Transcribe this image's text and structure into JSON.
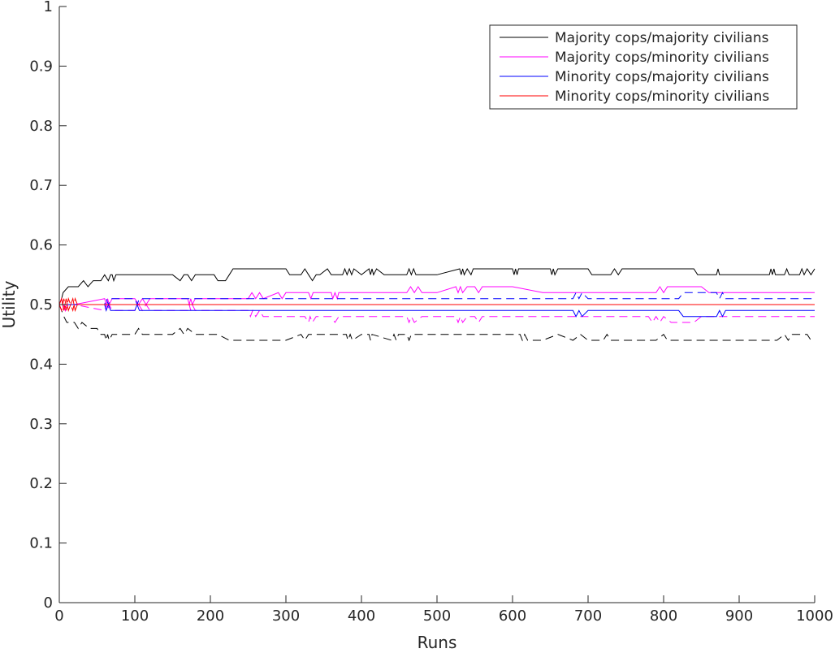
{
  "chart_data": {
    "type": "line",
    "title": "",
    "xlabel": "Runs",
    "ylabel": "Utility",
    "xlim": [
      0,
      1000
    ],
    "ylim": [
      0,
      1
    ],
    "xticks": [
      0,
      100,
      200,
      300,
      400,
      500,
      600,
      700,
      800,
      900,
      1000
    ],
    "yticks": [
      0,
      0.1,
      0.2,
      0.3,
      0.4,
      0.5,
      0.6,
      0.7,
      0.8,
      0.9,
      1
    ],
    "xtick_labels": [
      "0",
      "100",
      "200",
      "300",
      "400",
      "500",
      "600",
      "700",
      "800",
      "900",
      "1000"
    ],
    "ytick_labels": [
      "0",
      "0.1",
      "0.2",
      "0.3",
      "0.4",
      "0.5",
      "0.6",
      "0.7",
      "0.8",
      "0.9",
      "1"
    ],
    "grid": false,
    "legend_position": "top-right",
    "legend_entries": [
      "Majority cops/majority civilians",
      "Majority cops/minority civilians",
      "Minority cops/majority civilians",
      "Minority cops/minority civilians"
    ],
    "series": [
      {
        "color": "#000000",
        "style": "solid",
        "x": [
          0,
          3,
          5,
          12,
          18,
          25,
          32,
          38,
          45,
          55,
          60,
          65,
          68,
          70,
          72,
          75,
          80,
          90,
          100,
          150,
          160,
          165,
          170,
          175,
          180,
          205,
          210,
          220,
          225,
          230,
          300,
          305,
          320,
          325,
          330,
          335,
          340,
          345,
          355,
          360,
          375,
          378,
          381,
          384,
          387,
          390,
          400,
          410,
          412,
          414,
          416,
          420,
          430,
          440,
          460,
          463,
          466,
          469,
          472,
          500,
          530,
          532,
          534,
          536,
          540,
          545,
          548,
          560,
          600,
          602,
          604,
          606,
          608,
          620,
          650,
          652,
          654,
          656,
          660,
          700,
          705,
          710,
          730,
          735,
          740,
          745,
          750,
          790,
          800,
          840,
          845,
          850,
          870,
          872,
          874,
          900,
          940,
          942,
          944,
          946,
          948,
          960,
          963,
          966,
          980,
          983,
          986,
          990,
          995,
          1000
        ],
        "y": [
          0.5,
          0.51,
          0.52,
          0.53,
          0.53,
          0.53,
          0.54,
          0.53,
          0.54,
          0.54,
          0.55,
          0.54,
          0.55,
          0.55,
          0.54,
          0.55,
          0.55,
          0.55,
          0.55,
          0.55,
          0.54,
          0.55,
          0.55,
          0.54,
          0.55,
          0.55,
          0.54,
          0.54,
          0.55,
          0.56,
          0.56,
          0.55,
          0.55,
          0.56,
          0.55,
          0.54,
          0.55,
          0.55,
          0.56,
          0.55,
          0.55,
          0.56,
          0.55,
          0.56,
          0.55,
          0.56,
          0.55,
          0.56,
          0.55,
          0.56,
          0.55,
          0.56,
          0.55,
          0.55,
          0.55,
          0.56,
          0.55,
          0.56,
          0.55,
          0.55,
          0.56,
          0.55,
          0.56,
          0.55,
          0.56,
          0.55,
          0.56,
          0.56,
          0.56,
          0.55,
          0.56,
          0.55,
          0.56,
          0.56,
          0.56,
          0.55,
          0.56,
          0.55,
          0.56,
          0.56,
          0.55,
          0.55,
          0.55,
          0.56,
          0.55,
          0.56,
          0.56,
          0.56,
          0.56,
          0.56,
          0.55,
          0.55,
          0.55,
          0.56,
          0.55,
          0.55,
          0.55,
          0.56,
          0.55,
          0.56,
          0.55,
          0.55,
          0.56,
          0.55,
          0.55,
          0.56,
          0.55,
          0.56,
          0.55,
          0.56
        ]
      },
      {
        "color": "#000000",
        "style": "dashed",
        "x": [
          0,
          3,
          6,
          10,
          15,
          20,
          25,
          30,
          40,
          50,
          55,
          60,
          62,
          64,
          66,
          70,
          90,
          100,
          105,
          110,
          150,
          160,
          165,
          170,
          180,
          200,
          210,
          225,
          230,
          250,
          300,
          320,
          325,
          330,
          340,
          350,
          360,
          380,
          382,
          385,
          388,
          400,
          410,
          412,
          414,
          440,
          443,
          446,
          449,
          460,
          463,
          466,
          500,
          550,
          600,
          610,
          613,
          616,
          620,
          640,
          660,
          680,
          690,
          700,
          720,
          725,
          730,
          760,
          790,
          800,
          805,
          810,
          830,
          850,
          900,
          950,
          960,
          965,
          970,
          990,
          995,
          1000
        ],
        "y": [
          0.5,
          0.49,
          0.48,
          0.47,
          0.47,
          0.47,
          0.46,
          0.47,
          0.46,
          0.46,
          0.45,
          0.45,
          0.44,
          0.45,
          0.44,
          0.45,
          0.45,
          0.45,
          0.46,
          0.45,
          0.45,
          0.46,
          0.45,
          0.46,
          0.45,
          0.45,
          0.45,
          0.44,
          0.44,
          0.44,
          0.44,
          0.45,
          0.44,
          0.45,
          0.45,
          0.45,
          0.45,
          0.45,
          0.44,
          0.45,
          0.44,
          0.45,
          0.45,
          0.44,
          0.45,
          0.44,
          0.45,
          0.44,
          0.45,
          0.45,
          0.44,
          0.45,
          0.45,
          0.45,
          0.45,
          0.45,
          0.44,
          0.45,
          0.44,
          0.44,
          0.45,
          0.44,
          0.45,
          0.44,
          0.44,
          0.45,
          0.44,
          0.44,
          0.44,
          0.45,
          0.44,
          0.44,
          0.44,
          0.44,
          0.44,
          0.44,
          0.45,
          0.44,
          0.45,
          0.45,
          0.44,
          0.44
        ]
      },
      {
        "color": "#ff00ff",
        "style": "solid",
        "x": [
          0,
          3,
          5,
          8,
          10,
          20,
          60,
          62,
          64,
          66,
          70,
          100,
          105,
          110,
          115,
          120,
          170,
          172,
          174,
          176,
          180,
          250,
          255,
          260,
          265,
          270,
          290,
          295,
          300,
          330,
          333,
          336,
          340,
          345,
          350,
          360,
          362,
          365,
          368,
          370,
          380,
          400,
          420,
          460,
          465,
          470,
          475,
          480,
          500,
          525,
          528,
          531,
          534,
          540,
          550,
          555,
          560,
          600,
          640,
          700,
          720,
          740,
          790,
          795,
          800,
          805,
          810,
          820,
          850,
          860,
          870,
          880,
          900,
          1000
        ],
        "y": [
          0.5,
          0.51,
          0.5,
          0.49,
          0.5,
          0.5,
          0.51,
          0.5,
          0.51,
          0.5,
          0.51,
          0.51,
          0.5,
          0.51,
          0.5,
          0.51,
          0.51,
          0.5,
          0.51,
          0.5,
          0.51,
          0.51,
          0.52,
          0.51,
          0.52,
          0.51,
          0.52,
          0.51,
          0.52,
          0.52,
          0.51,
          0.52,
          0.52,
          0.52,
          0.52,
          0.52,
          0.51,
          0.52,
          0.51,
          0.52,
          0.52,
          0.52,
          0.52,
          0.52,
          0.53,
          0.52,
          0.53,
          0.52,
          0.52,
          0.53,
          0.52,
          0.53,
          0.52,
          0.53,
          0.53,
          0.52,
          0.53,
          0.53,
          0.52,
          0.52,
          0.52,
          0.52,
          0.52,
          0.53,
          0.52,
          0.53,
          0.53,
          0.53,
          0.53,
          0.52,
          0.52,
          0.52,
          0.52,
          0.52
        ]
      },
      {
        "color": "#ff00ff",
        "style": "dashed",
        "x": [
          0,
          3,
          5,
          8,
          10,
          20,
          60,
          62,
          64,
          66,
          70,
          100,
          105,
          110,
          115,
          120,
          170,
          172,
          174,
          176,
          180,
          250,
          253,
          256,
          260,
          265,
          270,
          300,
          325,
          330,
          332,
          335,
          340,
          350,
          360,
          365,
          370,
          380,
          400,
          420,
          460,
          463,
          466,
          470,
          480,
          500,
          525,
          528,
          531,
          534,
          540,
          550,
          555,
          560,
          600,
          700,
          760,
          780,
          785,
          790,
          795,
          800,
          810,
          820,
          840,
          850,
          870,
          900,
          1000
        ],
        "y": [
          0.5,
          0.49,
          0.5,
          0.49,
          0.5,
          0.5,
          0.49,
          0.5,
          0.49,
          0.5,
          0.49,
          0.49,
          0.5,
          0.49,
          0.5,
          0.49,
          0.49,
          0.5,
          0.49,
          0.5,
          0.49,
          0.49,
          0.48,
          0.49,
          0.48,
          0.49,
          0.48,
          0.48,
          0.48,
          0.47,
          0.48,
          0.47,
          0.48,
          0.48,
          0.48,
          0.47,
          0.48,
          0.48,
          0.48,
          0.48,
          0.48,
          0.47,
          0.48,
          0.47,
          0.48,
          0.48,
          0.48,
          0.47,
          0.48,
          0.47,
          0.48,
          0.48,
          0.47,
          0.48,
          0.48,
          0.48,
          0.48,
          0.48,
          0.47,
          0.48,
          0.47,
          0.48,
          0.47,
          0.47,
          0.47,
          0.48,
          0.48,
          0.48,
          0.48
        ]
      },
      {
        "color": "#0000ff",
        "style": "solid",
        "x": [
          0,
          60,
          62,
          65,
          68,
          70,
          100,
          103,
          106,
          110,
          120,
          200,
          300,
          400,
          500,
          600,
          680,
          684,
          688,
          692,
          700,
          820,
          826,
          830,
          850,
          870,
          874,
          878,
          882,
          900,
          1000
        ],
        "y": [
          0.5,
          0.5,
          0.49,
          0.5,
          0.49,
          0.49,
          0.49,
          0.5,
          0.49,
          0.49,
          0.49,
          0.49,
          0.49,
          0.49,
          0.49,
          0.49,
          0.49,
          0.48,
          0.49,
          0.48,
          0.49,
          0.49,
          0.48,
          0.48,
          0.48,
          0.48,
          0.49,
          0.48,
          0.49,
          0.49,
          0.49
        ]
      },
      {
        "color": "#0000ff",
        "style": "dashed",
        "x": [
          0,
          60,
          62,
          65,
          68,
          70,
          100,
          103,
          106,
          110,
          120,
          200,
          300,
          400,
          500,
          600,
          680,
          684,
          688,
          692,
          700,
          820,
          826,
          830,
          850,
          870,
          874,
          878,
          882,
          900,
          1000
        ],
        "y": [
          0.5,
          0.5,
          0.51,
          0.5,
          0.51,
          0.51,
          0.51,
          0.5,
          0.51,
          0.51,
          0.51,
          0.51,
          0.51,
          0.51,
          0.51,
          0.51,
          0.51,
          0.52,
          0.51,
          0.52,
          0.51,
          0.51,
          0.52,
          0.52,
          0.52,
          0.52,
          0.51,
          0.52,
          0.51,
          0.51,
          0.51
        ]
      },
      {
        "color": "#ff0000",
        "style": "solid",
        "x": [
          0,
          3,
          6,
          9,
          12,
          15,
          18,
          21,
          24,
          1000
        ],
        "y": [
          0.5,
          0.51,
          0.49,
          0.51,
          0.49,
          0.5,
          0.51,
          0.49,
          0.5,
          0.5
        ]
      },
      {
        "color": "#ff0000",
        "style": "dashed",
        "x": [
          0,
          3,
          6,
          9,
          12,
          15,
          18,
          21,
          24,
          1000
        ],
        "y": [
          0.5,
          0.49,
          0.51,
          0.49,
          0.51,
          0.5,
          0.49,
          0.51,
          0.5,
          0.5
        ]
      }
    ],
    "legend_colors": [
      "#000000",
      "#ff00ff",
      "#0000ff",
      "#ff0000"
    ]
  }
}
